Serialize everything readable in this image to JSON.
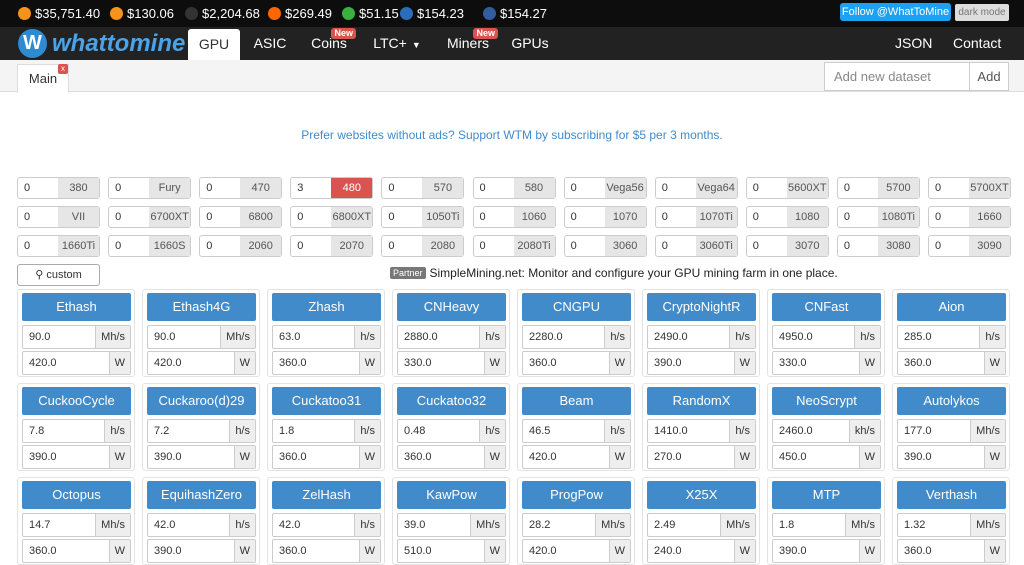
{
  "ticker": [
    "$35,751.40",
    "$130.06",
    "$2,204.68",
    "$269.49",
    "$51.15",
    "$154.23",
    "$154.27"
  ],
  "header": {
    "twitter": "Follow @WhatToMine",
    "dark_mode": "dark mode",
    "logo": "whattomine",
    "nav": [
      {
        "label": "GPU"
      },
      {
        "label": "ASIC"
      },
      {
        "label": "Coins",
        "badge": "New"
      },
      {
        "label": "LTC+"
      },
      {
        "label": "Miners",
        "badge": "New"
      },
      {
        "label": "GPUs"
      }
    ],
    "nav_right": [
      "JSON",
      "Contact"
    ]
  },
  "tabs": {
    "main": "Main",
    "placeholder": "Add new dataset",
    "add": "Add"
  },
  "promo": "Prefer websites without ads? Support WTM by subscribing for $5 per 3 months.",
  "gpus": [
    {
      "count": 0,
      "name": "380"
    },
    {
      "count": 0,
      "name": "Fury"
    },
    {
      "count": 0,
      "name": "470"
    },
    {
      "count": 3,
      "name": "480"
    },
    {
      "count": 0,
      "name": "570"
    },
    {
      "count": 0,
      "name": "580"
    },
    {
      "count": 0,
      "name": "Vega56"
    },
    {
      "count": 0,
      "name": "Vega64"
    },
    {
      "count": 0,
      "name": "5600XT"
    },
    {
      "count": 0,
      "name": "5700"
    },
    {
      "count": 0,
      "name": "5700XT"
    },
    {
      "count": 0,
      "name": "VII"
    },
    {
      "count": 0,
      "name": "6700XT"
    },
    {
      "count": 0,
      "name": "6800"
    },
    {
      "count": 0,
      "name": "6800XT"
    },
    {
      "count": 0,
      "name": "1050Ti"
    },
    {
      "count": 0,
      "name": "1060"
    },
    {
      "count": 0,
      "name": "1070"
    },
    {
      "count": 0,
      "name": "1070Ti"
    },
    {
      "count": 0,
      "name": "1080"
    },
    {
      "count": 0,
      "name": "1080Ti"
    },
    {
      "count": 0,
      "name": "1660"
    },
    {
      "count": 0,
      "name": "1660Ti"
    },
    {
      "count": 0,
      "name": "1660S"
    },
    {
      "count": 0,
      "name": "2060"
    },
    {
      "count": 0,
      "name": "2070"
    },
    {
      "count": 0,
      "name": "2080"
    },
    {
      "count": 0,
      "name": "2080Ti"
    },
    {
      "count": 0,
      "name": "3060"
    },
    {
      "count": 0,
      "name": "3060Ti"
    },
    {
      "count": 0,
      "name": "3070"
    },
    {
      "count": 0,
      "name": "3080"
    },
    {
      "count": 0,
      "name": "3090"
    }
  ],
  "custom": "custom",
  "partner": {
    "badge": "Partner",
    "text": "SimpleMining.net: Monitor and configure your GPU mining farm in one place."
  },
  "power_unit": "W",
  "algorithms": [
    {
      "name": "Ethash",
      "hashrate": "90.0",
      "unit": "Mh/s",
      "power": "420.0"
    },
    {
      "name": "Ethash4G",
      "hashrate": "90.0",
      "unit": "Mh/s",
      "power": "420.0"
    },
    {
      "name": "Zhash",
      "hashrate": "63.0",
      "unit": "h/s",
      "power": "360.0"
    },
    {
      "name": "CNHeavy",
      "hashrate": "2880.0",
      "unit": "h/s",
      "power": "330.0"
    },
    {
      "name": "CNGPU",
      "hashrate": "2280.0",
      "unit": "h/s",
      "power": "360.0"
    },
    {
      "name": "CryptoNightR",
      "hashrate": "2490.0",
      "unit": "h/s",
      "power": "390.0"
    },
    {
      "name": "CNFast",
      "hashrate": "4950.0",
      "unit": "h/s",
      "power": "330.0"
    },
    {
      "name": "Aion",
      "hashrate": "285.0",
      "unit": "h/s",
      "power": "360.0"
    },
    {
      "name": "CuckooCycle",
      "hashrate": "7.8",
      "unit": "h/s",
      "power": "390.0"
    },
    {
      "name": "Cuckaroo(d)29",
      "hashrate": "7.2",
      "unit": "h/s",
      "power": "390.0"
    },
    {
      "name": "Cuckatoo31",
      "hashrate": "1.8",
      "unit": "h/s",
      "power": "360.0"
    },
    {
      "name": "Cuckatoo32",
      "hashrate": "0.48",
      "unit": "h/s",
      "power": "360.0"
    },
    {
      "name": "Beam",
      "hashrate": "46.5",
      "unit": "h/s",
      "power": "420.0"
    },
    {
      "name": "RandomX",
      "hashrate": "1410.0",
      "unit": "h/s",
      "power": "270.0"
    },
    {
      "name": "NeoScrypt",
      "hashrate": "2460.0",
      "unit": "kh/s",
      "power": "450.0"
    },
    {
      "name": "Autolykos",
      "hashrate": "177.0",
      "unit": "Mh/s",
      "power": "390.0"
    },
    {
      "name": "Octopus",
      "hashrate": "14.7",
      "unit": "Mh/s",
      "power": "360.0"
    },
    {
      "name": "EquihashZero",
      "hashrate": "42.0",
      "unit": "h/s",
      "power": "390.0"
    },
    {
      "name": "ZelHash",
      "hashrate": "42.0",
      "unit": "h/s",
      "power": "360.0"
    },
    {
      "name": "KawPow",
      "hashrate": "39.0",
      "unit": "Mh/s",
      "power": "510.0"
    },
    {
      "name": "ProgPow",
      "hashrate": "28.2",
      "unit": "Mh/s",
      "power": "420.0"
    },
    {
      "name": "X25X",
      "hashrate": "2.49",
      "unit": "Mh/s",
      "power": "240.0"
    },
    {
      "name": "MTP",
      "hashrate": "1.8",
      "unit": "Mh/s",
      "power": "390.0"
    },
    {
      "name": "Verthash",
      "hashrate": "1.32",
      "unit": "Mh/s",
      "power": "360.0"
    }
  ]
}
